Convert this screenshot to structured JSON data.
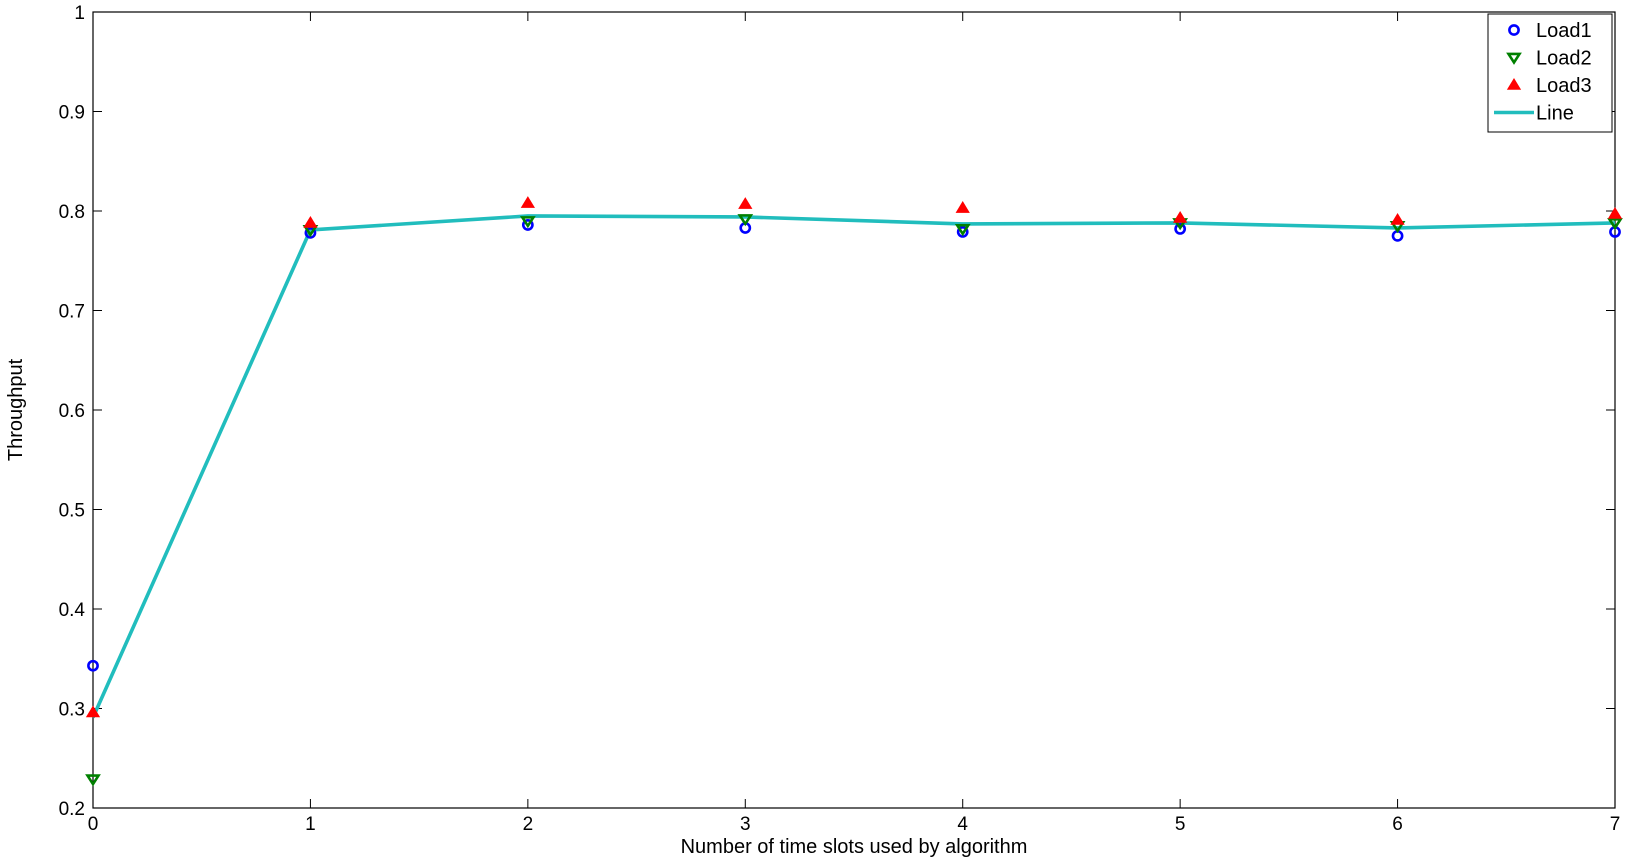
{
  "chart_data": {
    "type": "scatter",
    "title": "",
    "xlabel": "Number of time slots used by algorithm",
    "ylabel": "Throughput",
    "xlim": [
      0,
      7
    ],
    "ylim": [
      0.2,
      1
    ],
    "xticks": [
      "0",
      "1",
      "2",
      "3",
      "4",
      "5",
      "6",
      "7"
    ],
    "yticks": [
      "0.2",
      "0.3",
      "0.4",
      "0.5",
      "0.6",
      "0.7",
      "0.8",
      "0.9",
      "1"
    ],
    "grid": false,
    "legend_position": "top-right",
    "x": [
      0,
      1,
      2,
      3,
      4,
      5,
      6,
      7
    ],
    "series": [
      {
        "name": "Load1",
        "type": "scatter",
        "marker": "circle",
        "color": "#0000ff",
        "values": [
          0.343,
          0.778,
          0.786,
          0.783,
          0.779,
          0.782,
          0.775,
          0.779
        ]
      },
      {
        "name": "Load2",
        "type": "scatter",
        "marker": "triangle-down",
        "color": "#008000",
        "values": [
          0.229,
          0.781,
          0.79,
          0.792,
          0.782,
          0.788,
          0.785,
          0.788
        ]
      },
      {
        "name": "Load3",
        "type": "scatter",
        "marker": "triangle-up",
        "color": "#ff0000",
        "values": [
          0.296,
          0.788,
          0.808,
          0.807,
          0.803,
          0.793,
          0.791,
          0.797
        ]
      },
      {
        "name": "Line",
        "type": "line",
        "color": "#21bdbd",
        "values": [
          0.291,
          0.781,
          0.795,
          0.794,
          0.787,
          0.788,
          0.783,
          0.788
        ]
      }
    ]
  }
}
